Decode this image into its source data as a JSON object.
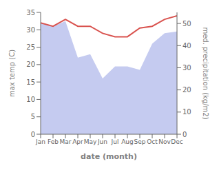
{
  "chart_data": {
    "type": "line",
    "xlabel": "date (month)",
    "ylabel": "max temp (C)",
    "y2label": "med. precipitation (kg/m2)",
    "categories": [
      "Jan",
      "Feb",
      "Mar",
      "Apr",
      "May",
      "Jun",
      "Jul",
      "Aug",
      "Sep",
      "Oct",
      "Nov",
      "Dec"
    ],
    "series": [
      {
        "type": "area",
        "color": "#c5cbf0",
        "values": [
          32.0,
          31.0,
          32.5,
          22.0,
          23.0,
          16.0,
          19.5,
          19.5,
          18.5,
          26.0,
          29.0,
          29.5
        ]
      },
      {
        "type": "line",
        "color": "#d9534f",
        "values": [
          32.0,
          31.0,
          33.0,
          31.0,
          31.0,
          29.0,
          28.0,
          28.0,
          30.5,
          31.0,
          33.0,
          34.0
        ]
      }
    ],
    "ylim": [
      0,
      35
    ],
    "yticks": [
      0,
      5,
      10,
      15,
      20,
      25,
      30,
      35
    ],
    "y2lim": [
      0,
      55
    ],
    "y2ticks": [
      0,
      10,
      20,
      30,
      40,
      50
    ],
    "grid": false
  }
}
